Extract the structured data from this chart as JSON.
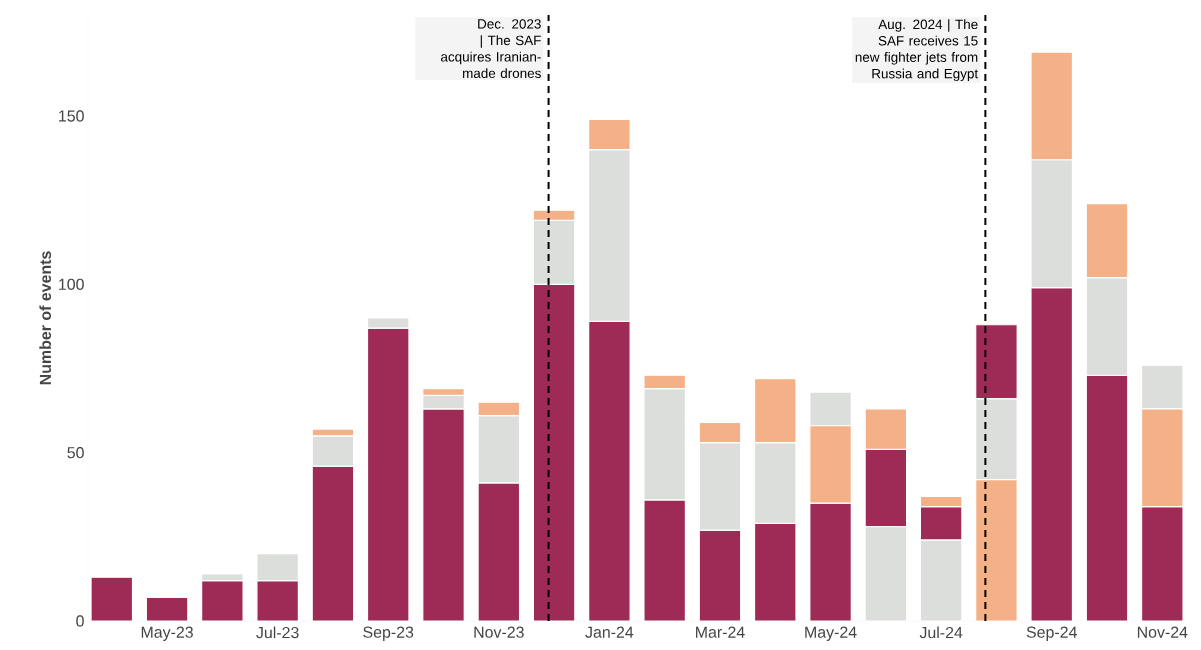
{
  "chart_data": {
    "type": "bar",
    "ylabel": "Number of events",
    "categories": [
      null,
      "May-23",
      null,
      "Jul-23",
      null,
      "Sep-23",
      null,
      "Nov-23",
      null,
      "Jan-24",
      null,
      "Mar-24",
      null,
      "May-24",
      null,
      "Jul-24",
      null,
      "Sep-24",
      null,
      "Nov-24"
    ],
    "series": [
      {
        "color": "#9e2b56",
        "values": [
          13,
          7,
          12,
          12,
          46,
          87,
          63,
          41,
          100,
          89,
          36,
          27,
          29,
          35,
          23,
          10,
          22,
          99,
          73,
          34
        ],
        "base": [
          0,
          0,
          0,
          0,
          0,
          0,
          0,
          0,
          0,
          0,
          0,
          0,
          0,
          0,
          28,
          24,
          66,
          0,
          0,
          0
        ]
      },
      {
        "color": "#dcdedb",
        "values": [
          null,
          null,
          2,
          8,
          9,
          3,
          4,
          20,
          19,
          51,
          33,
          26,
          24,
          10,
          28,
          24,
          24,
          38,
          29,
          13
        ],
        "base": [
          null,
          null,
          12,
          12,
          46,
          87,
          63,
          41,
          100,
          89,
          36,
          27,
          29,
          58,
          0,
          0,
          42,
          99,
          73,
          63
        ]
      },
      {
        "color": "#f4b086",
        "values": [
          null,
          null,
          null,
          null,
          2,
          null,
          2,
          4,
          3,
          9,
          4,
          6,
          19,
          23,
          12,
          3,
          42,
          32,
          22,
          29
        ],
        "base": [
          null,
          null,
          null,
          null,
          55,
          null,
          67,
          61,
          119,
          140,
          69,
          53,
          53,
          35,
          51,
          34,
          0,
          137,
          102,
          34
        ]
      }
    ],
    "ylim": [
      0,
      180
    ],
    "yticks": [
      0,
      50,
      100,
      150
    ],
    "annotations": [
      "Dec. 2023 | The SAF acquires Iranian-made drones",
      "Aug. 2024 | The SAF receives 15 new fighter jets from Russia and Egypt"
    ]
  }
}
